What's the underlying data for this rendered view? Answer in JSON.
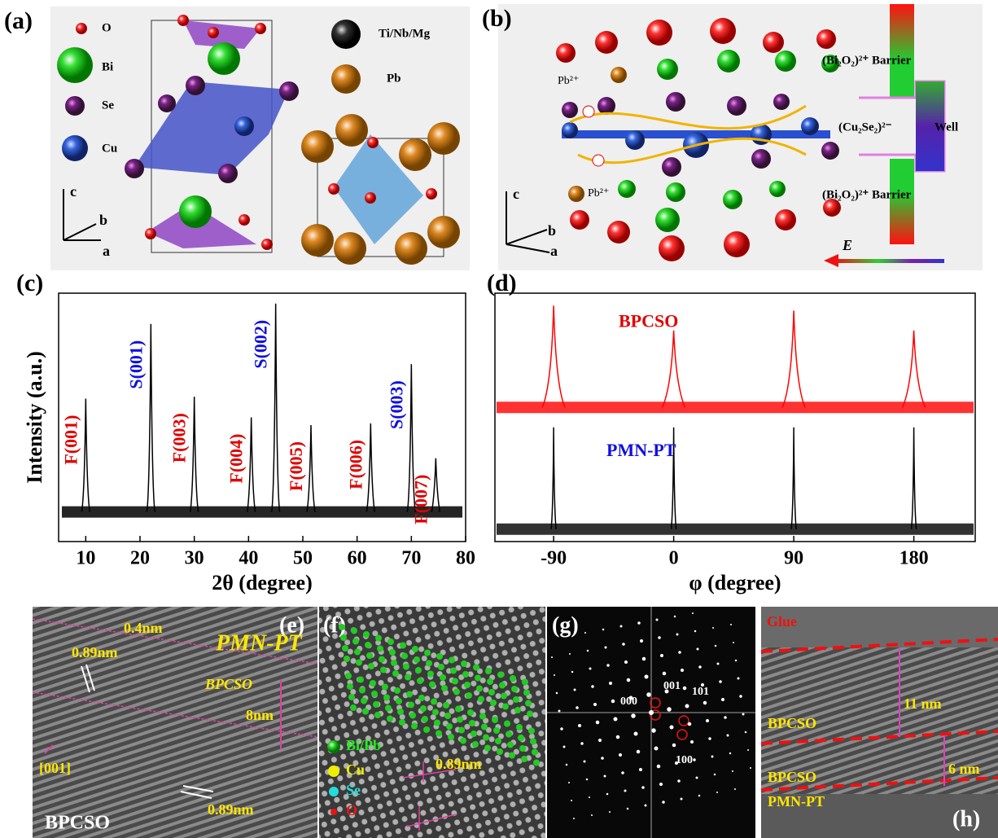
{
  "panels": {
    "a": {
      "label": "(a)",
      "legend": [
        "O",
        "Bi",
        "Se",
        "Cu",
        "Ti/Nb/Mg",
        "Pb"
      ],
      "axes": [
        "c",
        "b",
        "a"
      ]
    },
    "b": {
      "label": "(b)",
      "ions": [
        "Pb²⁺",
        "Pb²⁺"
      ],
      "barrier_top": "(Bi₂O₂)²⁺ Barrier",
      "well_layer": "(Cu₂Se₂)²⁻",
      "well": "Well",
      "barrier_bottom": "(Bi₂O₂)²⁺ Barrier",
      "field": "E",
      "axes": [
        "c",
        "b",
        "a"
      ]
    },
    "e": {
      "label": "(e)",
      "texts": [
        "0.4nm",
        "PMN-PT",
        "0.89nm",
        "BPCSO",
        "8nm",
        "[001]",
        "0.89nm",
        "BPCSO"
      ]
    },
    "f": {
      "label": "(f)",
      "legend": [
        "Bi/Pb",
        "Cu",
        "Se",
        "O"
      ],
      "spacing": "0.89nm"
    },
    "g": {
      "label": "(g)",
      "spots": [
        "001",
        "101",
        "000",
        "100"
      ]
    },
    "h": {
      "label": "(h)",
      "texts": [
        "Glue",
        "11 nm",
        "BPCSO",
        "6 nm",
        "BPCSO",
        "PMN-PT"
      ]
    }
  },
  "chart_data": [
    {
      "type": "spectrum",
      "label": "(c)",
      "xlabel": "2θ (degree)",
      "ylabel": "Intensity (a.u.)",
      "xlim": [
        5,
        80
      ],
      "xticks": [
        10,
        20,
        30,
        40,
        50,
        60,
        70,
        80
      ],
      "ylim": [
        1,
        10000
      ],
      "log": true,
      "color": "#000000",
      "baseline": 3,
      "peaks": {
        "x": [
          10,
          22,
          30,
          40.5,
          45,
          51.5,
          62.5,
          70,
          74.5
        ],
        "values": [
          200,
          3200,
          215,
          100,
          6800,
          75,
          80,
          720,
          22
        ],
        "labels": [
          "F(001)",
          "S(001)",
          "F(003)",
          "F(004)",
          "S(002)",
          "F(005)",
          "F(006)",
          "S(003)",
          "F(007)"
        ],
        "label_colors": [
          "#e00000",
          "#1010e0",
          "#e00000",
          "#e00000",
          "#1010e0",
          "#e00000",
          "#e00000",
          "#1010e0",
          "#e00000"
        ]
      }
    },
    {
      "type": "phiscan",
      "label": "(d)",
      "xlabel": "φ (degree)",
      "xlim": [
        -134,
        226
      ],
      "xticks": [
        -90,
        0,
        90,
        180
      ],
      "ylim": [
        0,
        100
      ],
      "series": [
        {
          "name": "BPCSO",
          "color": "#ff0000",
          "label_color": "#e00000",
          "x": [
            -90,
            0,
            90,
            180
          ],
          "values": [
            95,
            85,
            93,
            85
          ],
          "baseline": 54
        },
        {
          "name": "PMN-PT",
          "color": "#000000",
          "label_color": "#1010e0",
          "x": [
            -90,
            0,
            90,
            180
          ],
          "values": [
            46,
            46,
            46,
            46
          ],
          "baseline": 5
        }
      ]
    }
  ]
}
